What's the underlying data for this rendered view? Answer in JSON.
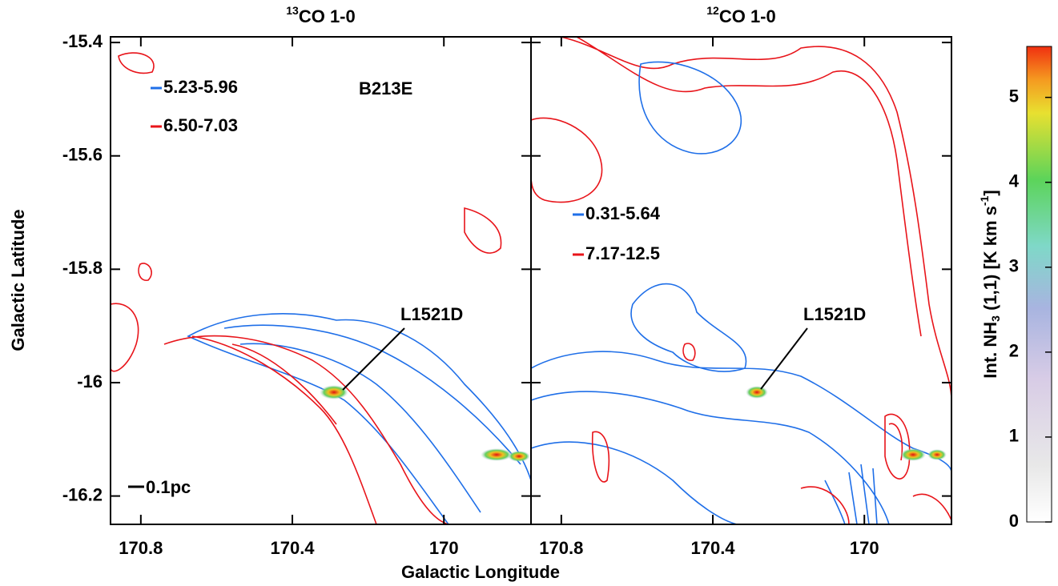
{
  "figure": {
    "xlabel": "Galactic Longitude",
    "ylabel": "Galactic Latitude",
    "colorbar": {
      "label_parts": [
        "Int. NH",
        "3",
        " (1,1) [K km s",
        "-1",
        "]"
      ],
      "lim": [
        0,
        5.6
      ],
      "ticks": [
        0,
        1,
        2,
        3,
        4,
        5
      ]
    }
  },
  "chart_data": [
    {
      "type": "contour",
      "title_sup": "13",
      "title_main": "CO 1-0",
      "xlim": [
        170.88,
        169.77
      ],
      "xticks": [
        170.8,
        170.4,
        170.0
      ],
      "ylim": [
        -16.25,
        -15.39
      ],
      "yticks": [
        -15.4,
        -15.6,
        -15.8,
        -16.0,
        -16.2
      ],
      "series": [
        {
          "name": "5.23-5.96",
          "color": "#1f6fe8"
        },
        {
          "name": "6.50-7.03",
          "color": "#e8141a"
        }
      ],
      "region_label": "B213E",
      "source_label": "L1521D",
      "scale_label": "0.1pc"
    },
    {
      "type": "contour",
      "title_sup": "12",
      "title_main": "CO 1-0",
      "xlim": [
        170.88,
        169.77
      ],
      "xticks": [
        170.8,
        170.4,
        170.0
      ],
      "ylim": [
        -16.25,
        -15.39
      ],
      "yticks": [
        -15.4,
        -15.6,
        -15.8,
        -16.0,
        -16.2
      ],
      "series": [
        {
          "name": "0.31-5.64",
          "color": "#1f6fe8"
        },
        {
          "name": "7.17-12.5",
          "color": "#e8141a"
        }
      ],
      "source_label": "L1521D"
    }
  ]
}
